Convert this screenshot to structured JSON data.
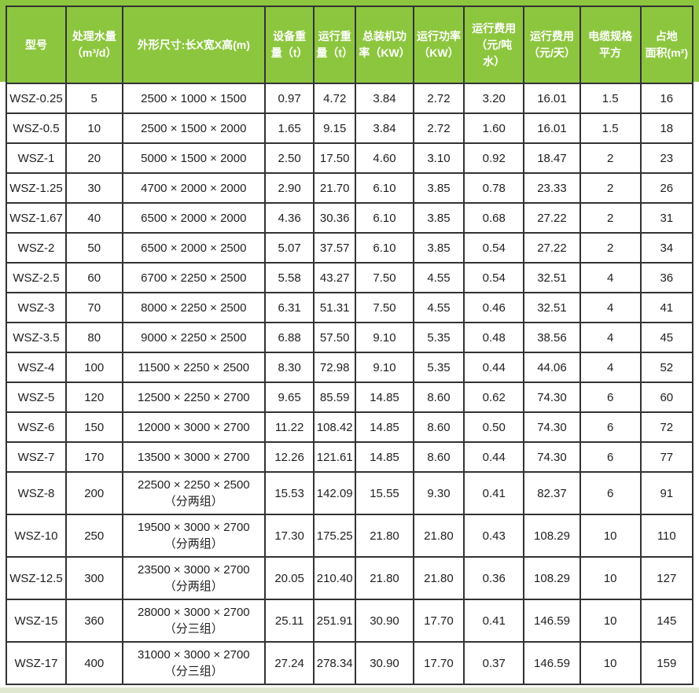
{
  "theme": {
    "header_bg": "#8cc63e",
    "header_text": "#ffffff",
    "grid_color": "#333333",
    "body_text": "#1f1f1f",
    "bottom_strip": "#dfe8cf"
  },
  "table": {
    "columns": [
      {
        "key": "model",
        "label": "型号"
      },
      {
        "key": "capacity",
        "label": "处理水量\n（m³/d）"
      },
      {
        "key": "dimensions",
        "label": "外形尺寸:长X宽X高(m)"
      },
      {
        "key": "equipment-weight",
        "label": "设备重\n量（t）"
      },
      {
        "key": "operating-weight",
        "label": "运行重\n量（t）"
      },
      {
        "key": "installed-power",
        "label": "总装机功\n率（KW）"
      },
      {
        "key": "operating-power",
        "label": "运行功率\n（KW）"
      },
      {
        "key": "cost-per-ton",
        "label": "运行费用\n（元/吨\n水）"
      },
      {
        "key": "cost-per-day",
        "label": "运行费用\n（元/天）"
      },
      {
        "key": "cable-spec",
        "label": "电缆规格\n平方"
      },
      {
        "key": "area",
        "label": "占地\n面积(m²)"
      }
    ],
    "rows": [
      [
        "WSZ-0.25",
        "5",
        "2500 × 1000 × 1500",
        "0.97",
        "4.72",
        "3.84",
        "2.72",
        "3.20",
        "16.01",
        "1.5",
        "16"
      ],
      [
        "WSZ-0.5",
        "10",
        "2500 × 1500 × 2000",
        "1.65",
        "9.15",
        "3.84",
        "2.72",
        "1.60",
        "16.01",
        "1.5",
        "18"
      ],
      [
        "WSZ-1",
        "20",
        "5000 × 1500 × 2000",
        "2.50",
        "17.50",
        "4.60",
        "3.10",
        "0.92",
        "18.47",
        "2",
        "23"
      ],
      [
        "WSZ-1.25",
        "30",
        "4700 × 2000 × 2000",
        "2.90",
        "21.70",
        "6.10",
        "3.85",
        "0.78",
        "23.33",
        "2",
        "26"
      ],
      [
        "WSZ-1.67",
        "40",
        "6500 × 2000 × 2000",
        "4.36",
        "30.36",
        "6.10",
        "3.85",
        "0.68",
        "27.22",
        "2",
        "31"
      ],
      [
        "WSZ-2",
        "50",
        "6500 × 2000 × 2500",
        "5.07",
        "37.57",
        "6.10",
        "3.85",
        "0.54",
        "27.22",
        "2",
        "34"
      ],
      [
        "WSZ-2.5",
        "60",
        "6700 × 2250 × 2500",
        "5.58",
        "43.27",
        "7.50",
        "4.55",
        "0.54",
        "32.51",
        "4",
        "36"
      ],
      [
        "WSZ-3",
        "70",
        "8000 × 2250 × 2500",
        "6.31",
        "51.31",
        "7.50",
        "4.55",
        "0.46",
        "32.51",
        "4",
        "41"
      ],
      [
        "WSZ-3.5",
        "80",
        "9000 × 2250 × 2500",
        "6.88",
        "57.50",
        "9.10",
        "5.35",
        "0.48",
        "38.56",
        "4",
        "45"
      ],
      [
        "WSZ-4",
        "100",
        "11500 × 2250 × 2500",
        "8.30",
        "72.98",
        "9.10",
        "5.35",
        "0.44",
        "44.06",
        "4",
        "52"
      ],
      [
        "WSZ-5",
        "120",
        "12500 × 2250 × 2700",
        "9.65",
        "85.59",
        "14.85",
        "8.60",
        "0.62",
        "74.30",
        "6",
        "60"
      ],
      [
        "WSZ-6",
        "150",
        "12000 × 3000 × 2700",
        "11.22",
        "108.42",
        "14.85",
        "8.60",
        "0.50",
        "74.30",
        "6",
        "72"
      ],
      [
        "WSZ-7",
        "170",
        "13500 × 3000 × 2700",
        "12.26",
        "121.61",
        "14.85",
        "8.60",
        "0.44",
        "74.30",
        "6",
        "77"
      ],
      [
        "WSZ-8",
        "200",
        "22500 × 2250 × 2500\n（分两组）",
        "15.53",
        "142.09",
        "15.55",
        "9.30",
        "0.41",
        "82.37",
        "6",
        "91"
      ],
      [
        "WSZ-10",
        "250",
        "19500 × 3000 × 2700\n（分两组）",
        "17.30",
        "175.25",
        "21.80",
        "21.80",
        "0.43",
        "108.29",
        "10",
        "110"
      ],
      [
        "WSZ-12.5",
        "300",
        "23500 × 3000 × 2700\n（分两组）",
        "20.05",
        "210.40",
        "21.80",
        "21.80",
        "0.36",
        "108.29",
        "10",
        "127"
      ],
      [
        "WSZ-15",
        "360",
        "28000 × 3000 × 2700\n（分三组）",
        "25.11",
        "251.91",
        "30.90",
        "17.70",
        "0.41",
        "146.59",
        "10",
        "145"
      ],
      [
        "WSZ-17",
        "400",
        "31000 × 3000 × 2700\n（分三组）",
        "27.24",
        "278.34",
        "30.90",
        "17.70",
        "0.37",
        "146.59",
        "10",
        "159"
      ]
    ]
  }
}
